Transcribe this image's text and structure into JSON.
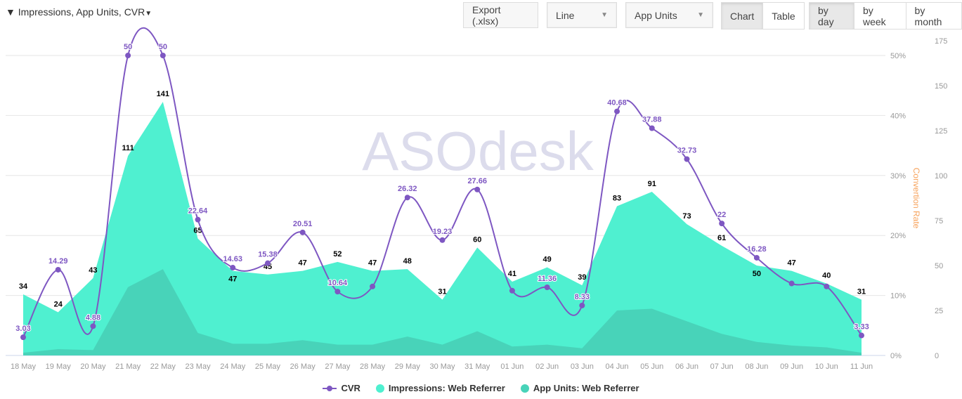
{
  "toolbar": {
    "filter_label": "Impressions, App Units, CVR",
    "export_label": "Export (.xlsx)",
    "chart_type": "Line",
    "metric": "App Units",
    "view_chart": "Chart",
    "view_table": "Table",
    "by_day": "by day",
    "by_week": "by week",
    "by_month": "by month"
  },
  "watermark": "ASOdesk",
  "chart_data": {
    "type": "area",
    "categories": [
      "18 May",
      "19 May",
      "20 May",
      "21 May",
      "22 May",
      "23 May",
      "24 May",
      "25 May",
      "26 May",
      "27 May",
      "28 May",
      "29 May",
      "30 May",
      "31 May",
      "01 Jun",
      "02 Jun",
      "03 Jun",
      "04 Jun",
      "05 Jun",
      "06 Jun",
      "07 Jun",
      "08 Jun",
      "09 Jun",
      "10 Jun",
      "11 Jun"
    ],
    "series": [
      {
        "name": "CVR",
        "type": "line",
        "axis": "left",
        "color": "#7e57c2",
        "values": [
          3.03,
          14.29,
          4.88,
          50,
          50,
          22.64,
          14.63,
          15.38,
          20.51,
          10.64,
          11.5,
          26.32,
          19.23,
          27.66,
          10.8,
          11.36,
          8.33,
          40.68,
          37.88,
          32.73,
          22,
          16.28,
          12,
          11.5,
          3.33
        ],
        "labels": [
          "3.03",
          "14.29",
          "4.88",
          "50",
          "50",
          "22.64",
          "14.63",
          "15.38",
          "20.51",
          "10.64",
          "",
          "26.32",
          "19.23",
          "27.66",
          "",
          "11.36",
          "8.33",
          "40.68",
          "37.88",
          "32.73",
          "22",
          "16.28",
          "",
          "",
          "3.33"
        ]
      },
      {
        "name": "Impressions: Web Referrer",
        "type": "area",
        "axis": "right",
        "color": "#4ff0d0",
        "values": [
          34,
          24,
          43,
          111,
          141,
          65,
          47,
          45,
          47,
          52,
          47,
          48,
          31,
          60,
          41,
          49,
          39,
          83,
          91,
          73,
          61,
          50,
          47,
          40,
          31
        ]
      },
      {
        "name": "App Units: Web Referrer",
        "type": "area",
        "axis": "right",
        "color": "#48d3b9",
        "values": [
          1.5,
          3.5,
          3,
          38,
          48,
          12.5,
          6.5,
          6.5,
          8.5,
          6,
          6,
          10.5,
          6,
          13.5,
          5,
          6,
          4,
          25,
          26,
          19,
          12,
          7.5,
          5.5,
          4.5,
          1.5
        ]
      }
    ],
    "left_axis": {
      "label": "Convertion Rate",
      "ticks": [
        "0%",
        "10%",
        "20%",
        "30%",
        "40%",
        "50%"
      ],
      "range": [
        0,
        50
      ]
    },
    "right_axis": {
      "ticks": [
        "0",
        "25",
        "50",
        "75",
        "100",
        "125",
        "150",
        "175"
      ],
      "range": [
        0,
        175
      ]
    },
    "grid": true,
    "legend": "bottom"
  }
}
